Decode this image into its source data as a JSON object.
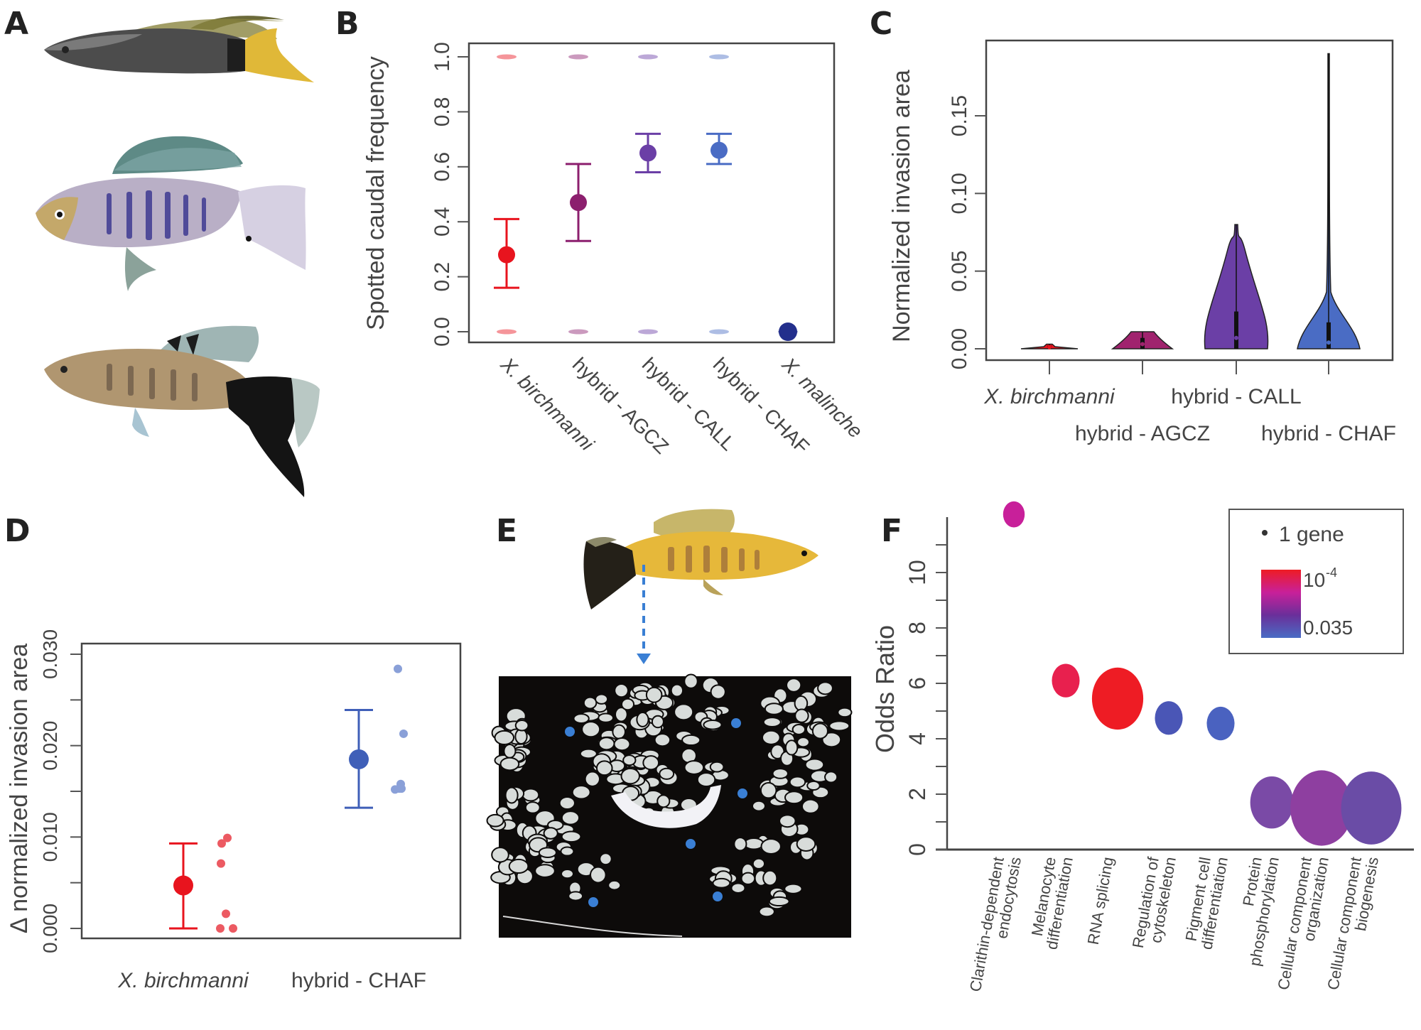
{
  "panels": {
    "A": {
      "letter": "A",
      "images": [
        "fish-xbirchmanni",
        "fish-xmalinche",
        "fish-hybrid"
      ]
    },
    "B": {
      "letter": "B"
    },
    "C": {
      "letter": "C"
    },
    "D": {
      "letter": "D"
    },
    "E": {
      "letter": "E",
      "images": [
        "fish-hybrid-yellow",
        "histology-section"
      ]
    },
    "F": {
      "letter": "F"
    }
  },
  "colors": {
    "xbirchmanni": "#e8141e",
    "agcz": "#8c1f6e",
    "call": "#6b3fa6",
    "chaf": "#4a6cc4",
    "xmalinche": "#232f8c",
    "histology_marker": "#3a7fd4"
  },
  "chart_data": [
    {
      "id": "B",
      "type": "scatter",
      "title": "",
      "xlabel": "",
      "ylabel": "Spotted caudal frequency",
      "ylim": [
        0,
        1
      ],
      "yticks": [
        "0.0",
        "0.2",
        "0.4",
        "0.6",
        "0.8",
        "1.0"
      ],
      "yticks_values": [
        0,
        0.2,
        0.4,
        0.6,
        0.8,
        1.0
      ],
      "categories": [
        "X. birchmanni",
        "hybrid - AGCZ",
        "hybrid - CALL",
        "hybrid - CHAF",
        "X. malinche"
      ],
      "italic_categories": [
        true,
        false,
        false,
        false,
        true
      ],
      "means": [
        0.28,
        0.47,
        0.65,
        0.66,
        0.0
      ],
      "ci_low": [
        0.16,
        0.33,
        0.58,
        0.61,
        null
      ],
      "ci_high": [
        0.41,
        0.61,
        0.72,
        0.72,
        null
      ],
      "raw_points_at": [
        [
          0,
          1
        ],
        [
          0,
          1
        ],
        [
          0,
          1
        ],
        [
          0,
          1
        ],
        [
          0
        ]
      ],
      "colors": [
        "#e8141e",
        "#8c1f6e",
        "#6b3fa6",
        "#4a6cc4",
        "#232f8c"
      ]
    },
    {
      "id": "C",
      "type": "violin",
      "ylabel": "Normalized invasion area",
      "ylim": [
        -0.008,
        0.2
      ],
      "yticks": [
        "0.00",
        "0.05",
        "0.10",
        "0.15"
      ],
      "yticks_values": [
        0,
        0.05,
        0.1,
        0.15
      ],
      "categories": [
        "X. birchmanni",
        "hybrid - AGCZ",
        "hybrid - CALL",
        "hybrid - CHAF"
      ],
      "italic_categories": [
        true,
        false,
        false,
        false
      ],
      "label_rows": [
        0,
        1,
        0,
        1
      ],
      "max": [
        0.003,
        0.011,
        0.08,
        0.19
      ],
      "median": [
        0.001,
        0.003,
        0.007,
        0.004
      ],
      "q3": [
        0.002,
        0.007,
        0.024,
        0.017
      ],
      "colors": [
        "#e8141e",
        "#a0236e",
        "#6b3fa6",
        "#4a6cc4"
      ]
    },
    {
      "id": "D",
      "type": "scatter",
      "ylabel": "Δ normalized invasion area",
      "ylim": [
        -0.0012,
        0.0318
      ],
      "yticks": [
        "0.000",
        "0.010",
        "0.020",
        "0.030"
      ],
      "yticks_values": [
        0,
        0.01,
        0.02,
        0.03
      ],
      "minor_ticks": [
        0.005,
        0.015,
        0.025
      ],
      "categories": [
        "X. birchmanni",
        "hybrid - CHAF"
      ],
      "italic_categories": [
        true,
        false
      ],
      "means": [
        0.0047,
        0.0185
      ],
      "ci_low": [
        0.0,
        0.0132
      ],
      "ci_high": [
        0.0093,
        0.0239
      ],
      "points": [
        [
          0.0099,
          0.0093,
          0.0071,
          0.0016,
          0.0,
          0.0
        ],
        [
          0.0284,
          0.0213,
          0.0158,
          0.0153,
          0.0152,
          0.0153
        ]
      ],
      "colors": [
        "#e8141e",
        "#3f5fb8"
      ],
      "point_colors": [
        "#ec5a62",
        "#8aa0d8"
      ]
    },
    {
      "id": "F",
      "type": "bubble",
      "ylabel": "Odds Ratio",
      "ylim": [
        0,
        12
      ],
      "yticks": [
        "0",
        "2",
        "4",
        "6",
        "8",
        "10"
      ],
      "yticks_values": [
        0,
        2,
        4,
        6,
        8,
        10
      ],
      "minor_ticks": [
        1,
        3,
        5,
        7,
        9,
        11
      ],
      "categories": [
        "Clarithin-dependent endocytosis",
        "Melanocyte differentiation",
        "RNA splicing",
        "Regulation of cytoskeleton",
        "Pigment cell differentiation",
        "Protein phosphorylation",
        "Cellular component organization",
        "Cellular component biogenesis"
      ],
      "category_lines": [
        [
          "Clarithin-dependent",
          "endocytosis"
        ],
        [
          "Melanocyte",
          "differentiation"
        ],
        [
          "RNA splicing"
        ],
        [
          "Regulation of",
          "cytoskeleton"
        ],
        [
          "Pigment cell",
          "differentiation"
        ],
        [
          "Protein",
          "phosphorylation"
        ],
        [
          "Cellular component",
          "organization"
        ],
        [
          "Cellular component",
          "biogenesis"
        ]
      ],
      "odds_ratio": [
        12.1,
        6.1,
        5.45,
        4.75,
        4.55,
        1.7,
        1.5,
        1.5
      ],
      "relative_size": [
        1,
        2,
        9,
        2,
        2,
        6,
        14,
        13
      ],
      "colors": [
        "#c8209a",
        "#e8204e",
        "#ee1c24",
        "#4a56b6",
        "#4a62c0",
        "#7a4aa6",
        "#8e3fa0",
        "#6a4ca6"
      ],
      "legend": {
        "size_label": "1 gene",
        "color_top_label": "10",
        "color_top_exp": "-4",
        "color_bottom_label": "0.035",
        "gradient": [
          "#ee1c24",
          "#c8209a",
          "#6a2f9a",
          "#4a6cc4"
        ]
      }
    }
  ]
}
